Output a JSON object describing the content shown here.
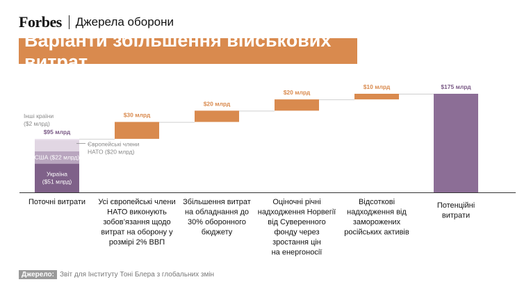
{
  "header": {
    "brand": "Forbes",
    "section": "Джерела оборони",
    "title": "Варіанти збільшення військових витрат"
  },
  "source": {
    "label": "Джерело:",
    "text": "Звіт для Інституту Тоні Блера з глобальних змін"
  },
  "colors": {
    "total": "#8c6e96",
    "increase": "#d98a4e",
    "ukraine": "#7f6189",
    "usa": "#b9a6bf",
    "europe": "#e1d6e3",
    "other": "#ece5ee",
    "title_bg": "#d98a4e",
    "label_total": "#7a5a86",
    "label_increase": "#d98a4e"
  },
  "chart_data": {
    "type": "bar",
    "subtype": "waterfall",
    "unit": "млрд $",
    "categories": [
      "Поточні витрати",
      "Усі європейські члени НАТО виконують зобов’язання щодо витрат на оборону у розмірі 2% ВВП",
      "Збільшення витрат на обладнання до 30% оборонного бюджету",
      "Оціночні річні надходження Норвегії від Суверенного фонду через зростання цін на енергоносії",
      "Відсоткові надходження від заморожених російських активів",
      "Потенційні витрати"
    ],
    "steps": [
      {
        "kind": "total",
        "value": 95,
        "label": "$95 млрд"
      },
      {
        "kind": "increase",
        "value": 30,
        "label": "$30 млрд"
      },
      {
        "kind": "increase",
        "value": 20,
        "label": "$20 млрд"
      },
      {
        "kind": "increase",
        "value": 20,
        "label": "$20 млрд"
      },
      {
        "kind": "increase",
        "value": 10,
        "label": "$10 млрд"
      },
      {
        "kind": "total",
        "value": 175,
        "label": "$175 млрд"
      }
    ],
    "breakdown": [
      {
        "name": "Україна",
        "value": 51,
        "label": "Україна ($51 млрд)",
        "lines": [
          "Україна",
          "($51 млрд)"
        ]
      },
      {
        "name": "США",
        "value": 22,
        "label": "США ($22 млрд)",
        "lines": [
          "США ($22 млрд)"
        ]
      },
      {
        "name": "Європейські члени НАТО",
        "value": 20,
        "label": "Європейські члени НАТО ($20 млрд)",
        "lines": [
          "Європейські члени",
          "НАТО ($20 млрд)"
        ]
      },
      {
        "name": "Інші країни",
        "value": 2,
        "label": "Інші країни ($2 млрд)",
        "lines": [
          "Інші країни",
          "($2 млрд)"
        ]
      }
    ],
    "category_lines": [
      [
        "Поточні витрати"
      ],
      [
        "Усі європейські члени",
        "НАТО виконують",
        "зобов’язання щодо",
        "витрат на оборону у",
        "розмірі 2% ВВП"
      ],
      [
        "Збільшення витрат",
        "на обладнання до",
        "30% оборонного",
        "бюджету"
      ],
      [
        "Оціночні річні",
        "надходження Норвегії",
        "від Суверенного",
        "фонду через",
        "зростання цін",
        "на енергоносії"
      ],
      [
        "Відсоткові",
        "надходження від",
        "заморожених",
        "російських активів"
      ],
      [
        "Потенційні",
        "витрати"
      ]
    ],
    "ylim": [
      0,
      175
    ],
    "grid": false
  }
}
